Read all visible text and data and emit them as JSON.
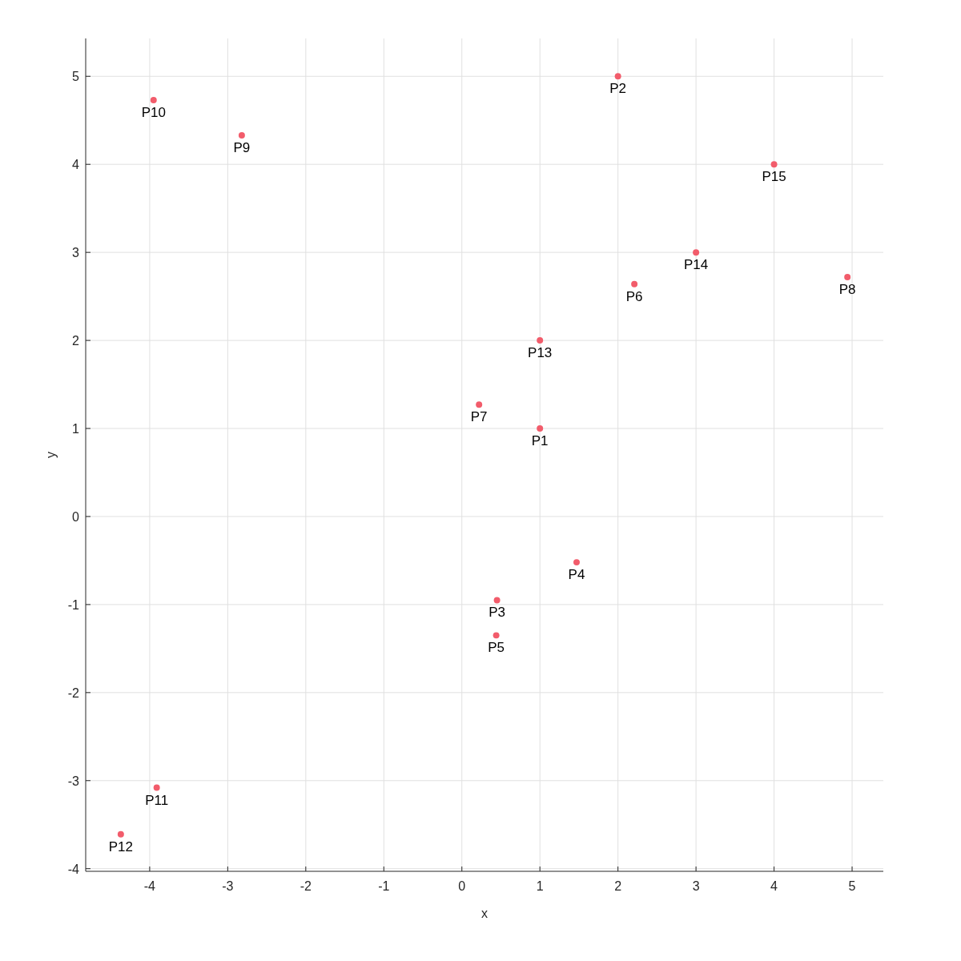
{
  "chart_data": {
    "type": "scatter",
    "xlabel": "x",
    "ylabel": "y",
    "x": [
      1,
      2,
      0.45,
      1.47,
      0.44,
      2.21,
      0.22,
      4.94,
      -2.82,
      -3.95,
      -3.91,
      -4.37,
      1,
      3,
      4
    ],
    "series": [
      {
        "color": "#f25c6b",
        "values": [
          1,
          5,
          -0.95,
          -0.52,
          -1.35,
          2.64,
          1.27,
          2.72,
          4.33,
          4.73,
          -3.08,
          -3.61,
          2,
          3,
          4
        ]
      }
    ],
    "annotations": [
      {
        "text": "P1",
        "x": 1,
        "y": 1
      },
      {
        "text": "P2",
        "x": 2,
        "y": 5
      },
      {
        "text": "P3",
        "x": 0.45,
        "y": -0.95
      },
      {
        "text": "P4",
        "x": 1.47,
        "y": -0.52
      },
      {
        "text": "P5",
        "x": 0.44,
        "y": -1.35
      },
      {
        "text": "P6",
        "x": 2.21,
        "y": 2.64
      },
      {
        "text": "P7",
        "x": 0.22,
        "y": 1.27
      },
      {
        "text": "P8",
        "x": 4.94,
        "y": 2.72
      },
      {
        "text": "P9",
        "x": -2.82,
        "y": 4.33
      },
      {
        "text": "P10",
        "x": -3.95,
        "y": 4.73
      },
      {
        "text": "P11",
        "x": -3.91,
        "y": -3.08
      },
      {
        "text": "P12",
        "x": -4.37,
        "y": -3.61
      },
      {
        "text": "P13",
        "x": 1,
        "y": 2
      },
      {
        "text": "P14",
        "x": 3,
        "y": 3
      },
      {
        "text": "P15",
        "x": 4,
        "y": 4
      }
    ],
    "xlim": [
      -4.82,
      5.4
    ],
    "ylim": [
      -4.03,
      5.43
    ],
    "xticks": [
      -4,
      -3,
      -2,
      -1,
      0,
      1,
      2,
      3,
      4,
      5
    ],
    "yticks": [
      -4,
      -3,
      -2,
      -1,
      0,
      1,
      2,
      3,
      4,
      5
    ],
    "grid": true,
    "marker": "circle"
  }
}
